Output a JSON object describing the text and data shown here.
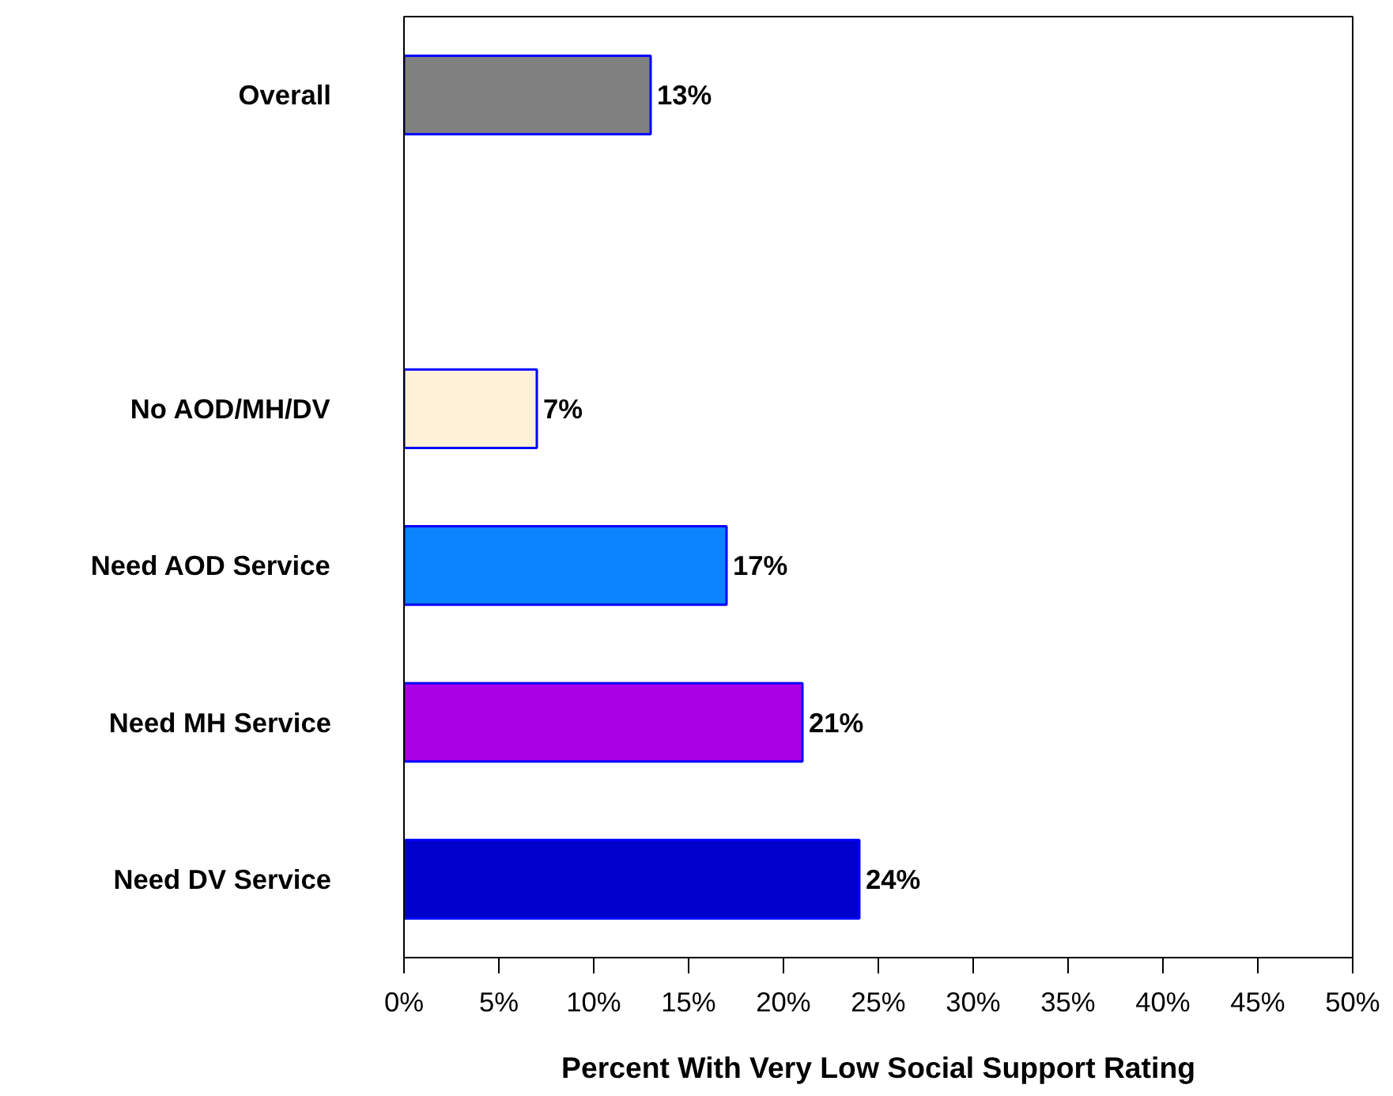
{
  "chart_data": {
    "type": "bar",
    "orientation": "horizontal",
    "xlabel": "Percent With Very Low Social Support Rating",
    "categories": [
      "Overall",
      null,
      "No AOD/MH/DV",
      "Need AOD Service",
      "Need MH Service",
      "Need DV Service"
    ],
    "values": [
      13,
      null,
      7,
      17,
      21,
      24
    ],
    "colors": [
      "#808080",
      null,
      "#fff0d8",
      "#0a84ff",
      "#aa00e6",
      "#0000cc"
    ],
    "value_labels": [
      "13%",
      null,
      "7%",
      "17%",
      "21%",
      "24%"
    ],
    "xlim": [
      0,
      50
    ],
    "xticks": [
      {
        "value": 0,
        "label": "0%"
      },
      {
        "value": 5,
        "label": "5%"
      },
      {
        "value": 10,
        "label": "10%"
      },
      {
        "value": 15,
        "label": "15%"
      },
      {
        "value": 20,
        "label": "20%"
      },
      {
        "value": 25,
        "label": "25%"
      },
      {
        "value": 30,
        "label": "30%"
      },
      {
        "value": 35,
        "label": "35%"
      },
      {
        "value": 40,
        "label": "40%"
      },
      {
        "value": 45,
        "label": "45%"
      },
      {
        "value": 50,
        "label": "50%"
      }
    ],
    "grid": false
  }
}
